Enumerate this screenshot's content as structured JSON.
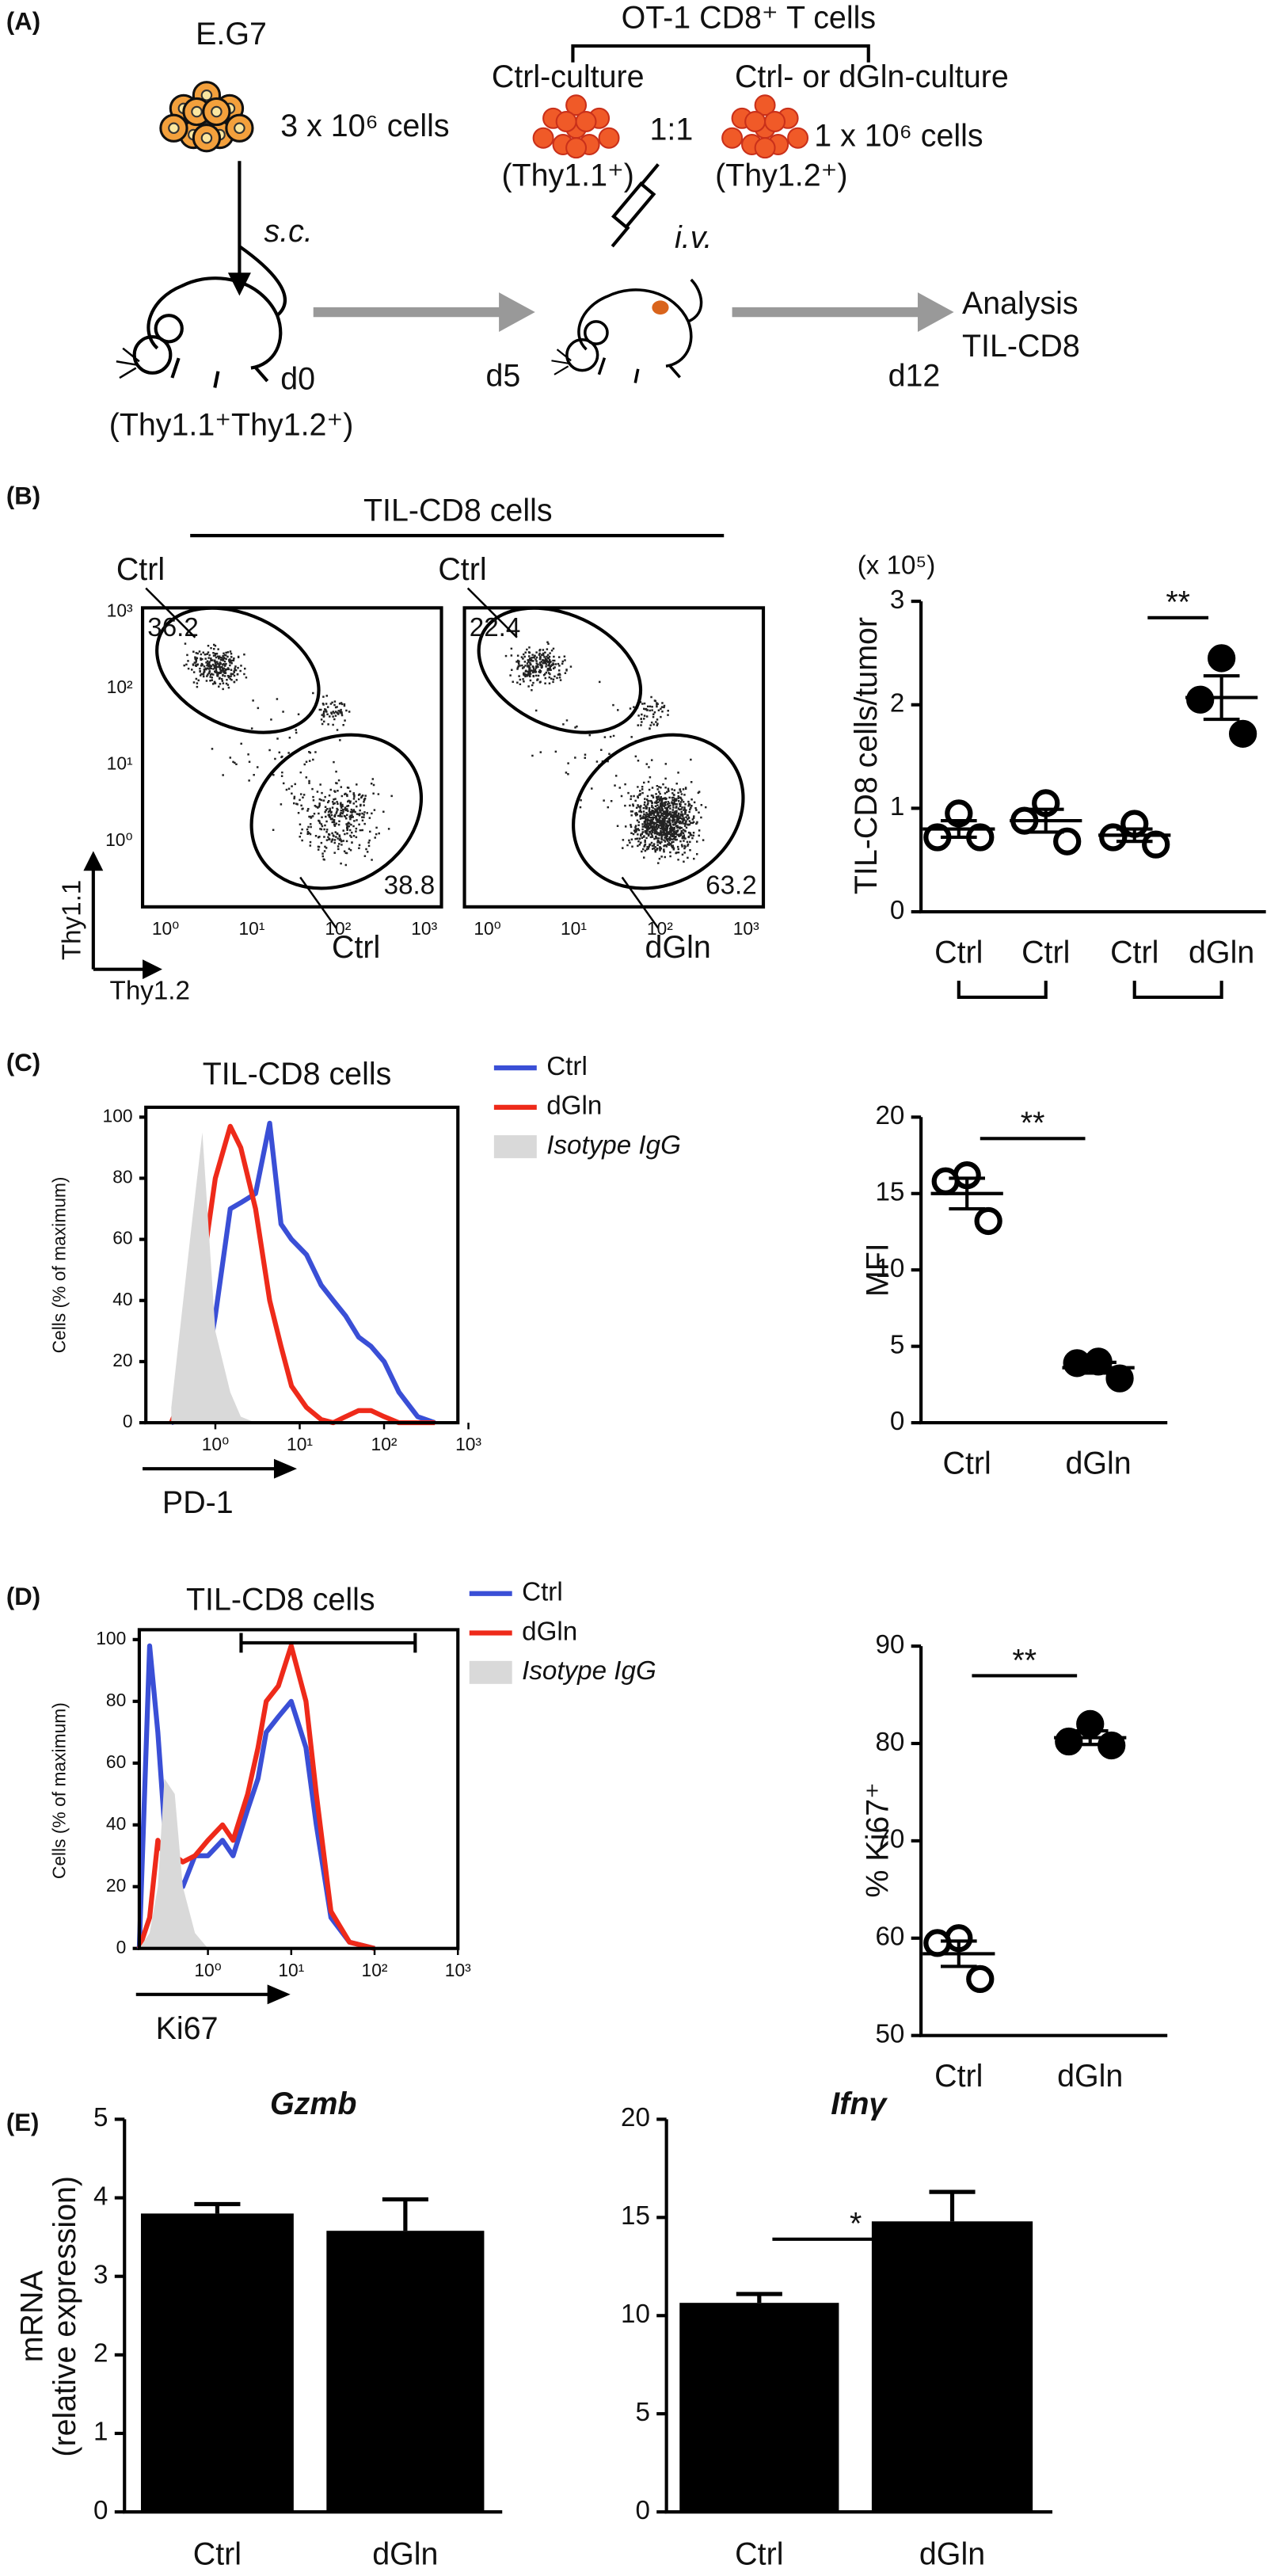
{
  "panels": [
    "(A)",
    "(B)",
    "(C)",
    "(D)",
    "(E)"
  ],
  "diagram": {
    "tumor": "E.G7",
    "tumor_dose": "3 x 10⁶ cells",
    "route1": "s.c.",
    "day0": "d0",
    "host": "(Thy1.1⁺Thy1.2⁺)",
    "donor": "OT-1 CD8⁺ T cells",
    "culture1": "Ctrl-culture",
    "culture2": "Ctrl- or dGln-culture",
    "ratio": "1:1",
    "cell_dose": "1 x 10⁶ cells",
    "marker1": "(Thy1.1⁺)",
    "marker2": "(Thy1.2⁺)",
    "route2": "i.v.",
    "day5": "d5",
    "day12": "d12",
    "analysis": "Analysis",
    "analysis_target": "TIL-CD8"
  },
  "flow": {
    "title": "TIL-CD8 cells",
    "x_label": "Thy1.2",
    "y_label": "Thy1.1",
    "ticks": [
      "10⁰",
      "10¹",
      "10²",
      "10³"
    ],
    "plots": [
      {
        "gates": [
          {
            "label": "Ctrl",
            "value": 36.2
          },
          {
            "label": "Ctrl",
            "value": 38.8
          }
        ]
      },
      {
        "gates": [
          {
            "label": "Ctrl",
            "value": 22.4
          },
          {
            "label": "dGln",
            "value": 63.2
          }
        ]
      }
    ]
  },
  "chart_data": [
    {
      "type": "dot",
      "y_label": "TIL-CD8 cells/tumor",
      "scale_label": "(x 10⁵)",
      "categories": [
        "Ctrl",
        "Ctrl",
        "Ctrl",
        "dGln"
      ],
      "points": [
        [
          0.95,
          0.72,
          0.72
        ],
        [
          1.05,
          0.88,
          0.68
        ],
        [
          0.85,
          0.72,
          0.65
        ],
        [
          2.45,
          2.05,
          1.72
        ]
      ],
      "means": [
        0.8,
        0.88,
        0.74,
        2.07
      ],
      "sem": [
        0.08,
        0.11,
        0.06,
        0.21
      ],
      "filled": [
        false,
        false,
        false,
        true
      ],
      "brackets": [
        [
          0,
          1
        ],
        [
          2,
          3
        ]
      ],
      "annotation": "**",
      "annotation_between": [
        2,
        3
      ],
      "ylim": [
        0,
        3
      ],
      "yticks": [
        0,
        1,
        2,
        3
      ]
    },
    {
      "type": "line",
      "title": "TIL-CD8 cells",
      "x_label": "PD-1",
      "y_label": "Cells (% of maximum)",
      "log_x": true,
      "x": [
        0.3,
        0.5,
        0.7,
        1,
        1.5,
        2,
        3,
        4.4,
        6,
        8,
        12,
        18,
        25,
        35,
        50,
        70,
        100,
        150,
        250,
        400
      ],
      "series": [
        {
          "name": "Ctrl",
          "color": "#3a4fd6",
          "values": [
            0,
            2,
            10,
            35,
            70,
            72,
            75,
            98,
            65,
            60,
            55,
            45,
            40,
            35,
            28,
            25,
            20,
            10,
            2,
            0
          ]
        },
        {
          "name": "dGln",
          "color": "#ee2a1a",
          "values": [
            0,
            15,
            50,
            80,
            97,
            90,
            70,
            40,
            25,
            12,
            5,
            1,
            0,
            2,
            4,
            4,
            2,
            0,
            0,
            0
          ]
        },
        {
          "name": "Isotype IgG",
          "color": "#d9d9d9",
          "fill": true,
          "values": [
            5,
            60,
            95,
            30,
            10,
            2,
            0,
            0,
            0,
            0,
            0,
            0,
            0,
            0,
            0,
            0,
            0,
            0,
            0,
            0
          ]
        }
      ],
      "xlim": [
        0.15,
        750
      ],
      "xticks": [
        {
          "value": 1,
          "label": "10⁰"
        },
        {
          "value": 10,
          "label": "10¹"
        },
        {
          "value": 100,
          "label": "10²"
        },
        {
          "value": 1000,
          "label": "10³"
        }
      ],
      "ylim": [
        0,
        100
      ],
      "yticks": [
        0,
        20,
        40,
        60,
        80,
        100
      ]
    },
    {
      "type": "dot",
      "y_label": "MFI",
      "categories": [
        "Ctrl",
        "dGln"
      ],
      "points": [
        [
          16.2,
          15.8,
          13.2
        ],
        [
          4.0,
          3.9,
          2.9
        ]
      ],
      "means": [
        15.0,
        3.6
      ],
      "sem": [
        1.0,
        0.35
      ],
      "filled": [
        false,
        true
      ],
      "annotation": "**",
      "annotation_between": [
        0,
        1
      ],
      "ylim": [
        0,
        20
      ],
      "yticks": [
        0,
        5,
        10,
        15,
        20
      ]
    },
    {
      "type": "line",
      "title": "TIL-CD8 cells",
      "x_label": "Ki67",
      "y_label": "Cells (% of maximum)",
      "log_x": true,
      "x": [
        0.15,
        0.2,
        0.25,
        0.3,
        0.4,
        0.5,
        0.7,
        1,
        1.5,
        2,
        3,
        4,
        5,
        7,
        10,
        15,
        20,
        30,
        50,
        100
      ],
      "series": [
        {
          "name": "Ctrl",
          "color": "#3a4fd6",
          "values": [
            0,
            98,
            70,
            40,
            25,
            20,
            30,
            30,
            35,
            30,
            45,
            55,
            70,
            75,
            80,
            65,
            40,
            10,
            2,
            0
          ]
        },
        {
          "name": "dGln",
          "color": "#ee2a1a",
          "values": [
            0,
            10,
            35,
            30,
            30,
            28,
            30,
            35,
            40,
            35,
            50,
            65,
            80,
            85,
            98,
            80,
            50,
            12,
            2,
            0
          ]
        },
        {
          "name": "Isotype IgG",
          "color": "#d9d9d9",
          "fill": true,
          "values": [
            0,
            5,
            20,
            55,
            50,
            20,
            5,
            0,
            0,
            0,
            0,
            0,
            0,
            0,
            0,
            0,
            0,
            0,
            0,
            0
          ]
        }
      ],
      "xlim": [
        0.15,
        1000
      ],
      "xticks": [
        {
          "value": 1,
          "label": "10⁰"
        },
        {
          "value": 10,
          "label": "10¹"
        },
        {
          "value": 100,
          "label": "10²"
        },
        {
          "value": 1000,
          "label": "10³"
        }
      ],
      "ylim": [
        0,
        100
      ],
      "yticks": [
        0,
        20,
        40,
        60,
        80,
        100
      ]
    },
    {
      "type": "dot",
      "y_label": "% Ki67⁺",
      "categories": [
        "Ctrl",
        "dGln"
      ],
      "points": [
        [
          60.0,
          59.5,
          55.8
        ],
        [
          82.0,
          80.2,
          79.8
        ]
      ],
      "means": [
        58.4,
        80.6
      ],
      "sem": [
        1.3,
        0.7
      ],
      "filled": [
        false,
        true
      ],
      "annotation": "**",
      "annotation_between": [
        0,
        1
      ],
      "ylim": [
        50,
        90
      ],
      "yticks": [
        50,
        60,
        70,
        80,
        90
      ]
    },
    {
      "type": "bar",
      "title": "Gzmb",
      "y_label": [
        "mRNA",
        "(relative expression)"
      ],
      "categories": [
        "Ctrl",
        "dGln"
      ],
      "values": [
        3.8,
        3.58
      ],
      "errors": [
        0.12,
        0.4
      ],
      "color": "#000000",
      "ylim": [
        0,
        5
      ],
      "yticks": [
        0,
        1,
        2,
        3,
        4,
        5
      ]
    },
    {
      "type": "bar",
      "title": "Ifnγ",
      "categories": [
        "Ctrl",
        "dGln"
      ],
      "values": [
        10.65,
        14.8
      ],
      "errors": [
        0.45,
        1.5
      ],
      "color": "#000000",
      "annotation": "*",
      "annotation_between": [
        0,
        1
      ],
      "ylim": [
        0,
        20
      ],
      "yticks": [
        0,
        5,
        10,
        15,
        20
      ]
    }
  ]
}
